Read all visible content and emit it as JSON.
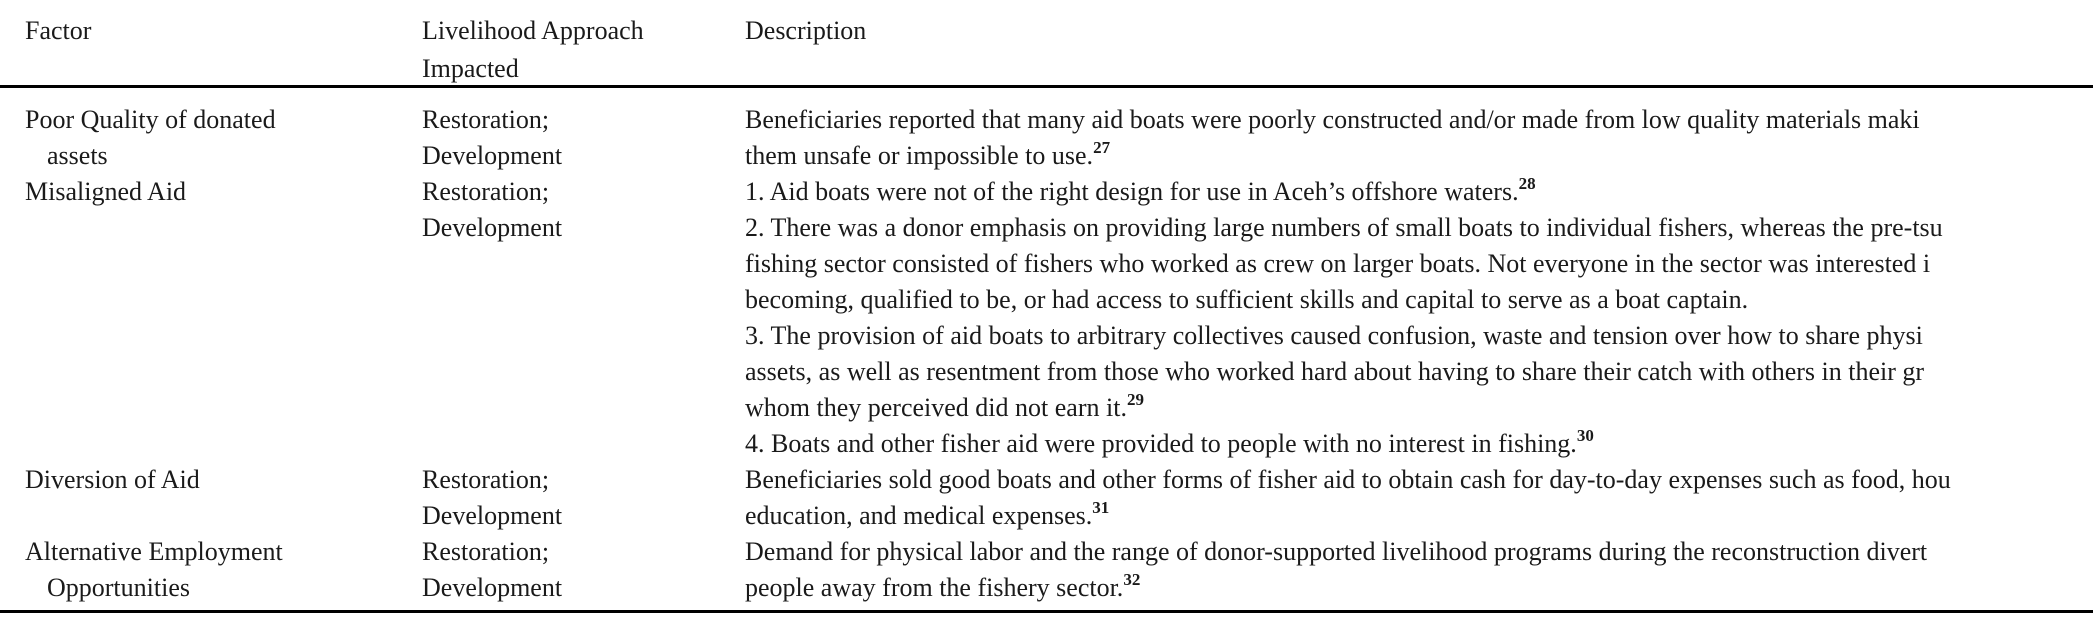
{
  "table": {
    "headers": {
      "factor": "Factor",
      "approach_line1": "Livelihood Approach",
      "approach_line2": "Impacted",
      "description": "Description"
    },
    "rows": [
      {
        "factor": [
          {
            "text": "Poor Quality of donated"
          },
          {
            "text": "assets",
            "indent": true
          }
        ],
        "approach": [
          "Restoration;",
          "Development"
        ],
        "description": [
          {
            "text": "Beneficiaries reported that many aid boats were poorly constructed and/or made from low quality materials maki"
          },
          {
            "text": "them unsafe or impossible to use.",
            "sup": "27"
          }
        ]
      },
      {
        "factor": [
          {
            "text": "Misaligned Aid"
          }
        ],
        "approach": [
          "Restoration;",
          "Development"
        ],
        "description": [
          {
            "text": "1. Aid boats were not of the right design for use in Aceh’s offshore waters.",
            "sup": "28"
          },
          {
            "text": "2. There was a donor emphasis on providing large numbers of small boats to individual fishers, whereas the pre-tsu"
          },
          {
            "text": "fishing sector consisted of fishers who worked as crew on larger boats. Not everyone in the sector was interested i"
          },
          {
            "text": "becoming, qualified to be, or had access to sufficient skills and capital to serve as a boat captain."
          },
          {
            "text": "3. The provision of aid boats to arbitrary collectives caused confusion, waste and tension over how to share physi"
          },
          {
            "text": "assets, as well as resentment from those who worked hard about having to share their catch with others in their gr"
          },
          {
            "text": "whom they perceived did not earn it.",
            "sup": "29"
          },
          {
            "text": "4. Boats and other fisher aid were provided to people with no interest in fishing.",
            "sup": "30"
          }
        ]
      },
      {
        "factor": [
          {
            "text": "Diversion of Aid"
          }
        ],
        "approach": [
          "Restoration;",
          "Development"
        ],
        "description": [
          {
            "text": "Beneficiaries sold good boats and other forms of fisher aid to obtain cash for day-to-day expenses such as food, hou"
          },
          {
            "text": "education, and medical expenses.",
            "sup": "31"
          }
        ]
      },
      {
        "factor": [
          {
            "text": "Alternative Employment"
          },
          {
            "text": "Opportunities",
            "indent": true
          }
        ],
        "approach": [
          "Restoration;",
          "Development"
        ],
        "description": [
          {
            "text": "Demand for physical labor and the range of donor-supported livelihood programs during the reconstruction divert"
          },
          {
            "text": "people away from the fishery sector.",
            "sup": "32"
          }
        ]
      }
    ]
  },
  "colors": {
    "text": "#1a1a1a",
    "rule": "#000000",
    "background": "#ffffff"
  }
}
